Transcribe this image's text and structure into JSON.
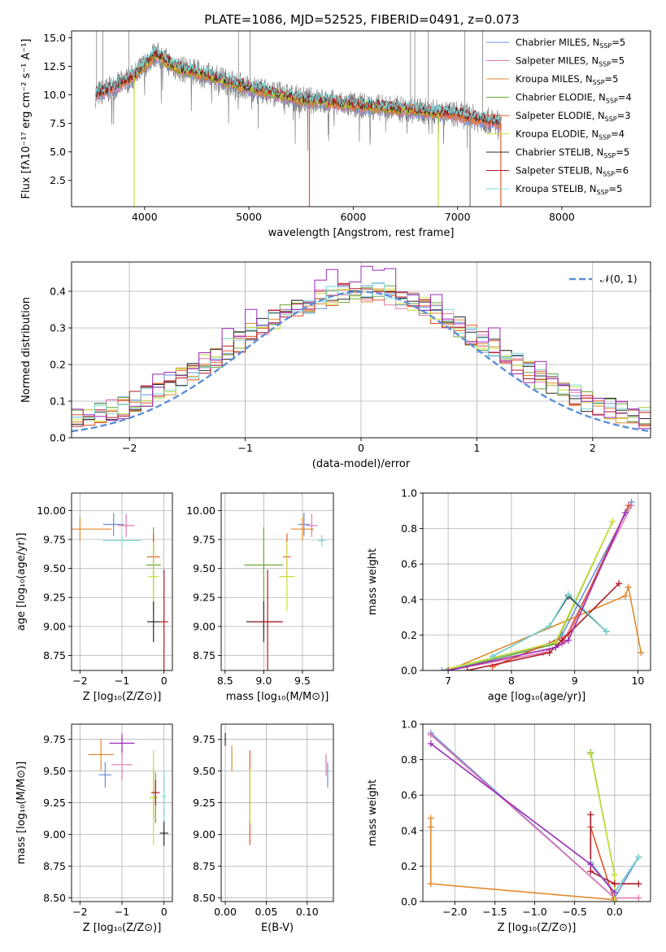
{
  "figure_title": "PLATE=1086, MJD=52525, FIBERID=0491, z=0.073",
  "colors": {
    "Chabrier MILES": "#6a8fd8",
    "Salpeter MILES": "#e07ab0",
    "Kroupa MILES": "#e08a2c",
    "Chabrier ELODIE": "#6aaa3a",
    "Salpeter ELODIE": "#e0582c",
    "Kroupa ELODIE": "#c8e03a",
    "Chabrier STELIB": "#2a2a2a",
    "Salpeter STELIB": "#b01a28",
    "Kroupa STELIB": "#7ad8d8",
    "data": "#808080",
    "extra": "#9a2ab8",
    "normal": "#5b8fd8"
  },
  "chart_data": [
    {
      "id": "spectrum",
      "type": "line",
      "title": "PLATE=1086, MJD=52525, FIBERID=0491, z=0.073",
      "xlabel": "wavelength [Angstrom, rest frame]",
      "ylabel": "Flux [fλ10⁻¹⁷ erg cm⁻² s⁻¹ A⁻¹]",
      "xlim": [
        3300,
        8850
      ],
      "ylim": [
        0.2,
        15.6
      ],
      "xticks": [
        4000,
        5000,
        6000,
        7000,
        8000
      ],
      "yticks": [
        2.5,
        5.0,
        7.5,
        10.0,
        12.5,
        15.0
      ],
      "legend_position": "upper right",
      "legend": [
        {
          "label": "Chabrier MILES, N",
          "sub": "SSP",
          "suffix": "=5"
        },
        {
          "label": "Salpeter MILES, N",
          "sub": "SSP",
          "suffix": "=5"
        },
        {
          "label": "Kroupa MILES, N",
          "sub": "SSP",
          "suffix": "=5"
        },
        {
          "label": "Chabrier ELODIE, N",
          "sub": "SSP",
          "suffix": "=4"
        },
        {
          "label": "Salpeter ELODIE, N",
          "sub": "SSP",
          "suffix": "=3"
        },
        {
          "label": "Kroupa ELODIE, N",
          "sub": "SSP",
          "suffix": "=4"
        },
        {
          "label": "Chabrier STELIB, N",
          "sub": "SSP",
          "suffix": "=5"
        },
        {
          "label": "Salpeter STELIB, N",
          "sub": "SSP",
          "suffix": "=6"
        },
        {
          "label": "Kroupa STELIB, N",
          "sub": "SSP",
          "suffix": "=5"
        }
      ],
      "continuum": {
        "x": [
          3530,
          3700,
          3900,
          4100,
          4300,
          4600,
          5000,
          5500,
          6000,
          6500,
          7000,
          7300,
          7400
        ],
        "y": [
          10.0,
          10.6,
          11.6,
          13.6,
          12.4,
          11.7,
          10.6,
          9.6,
          9.1,
          8.7,
          8.3,
          7.7,
          7.6
        ]
      },
      "model_range": [
        [
          3530,
          7420
        ],
        [
          3530,
          7420
        ],
        [
          3530,
          7420
        ],
        [
          3900,
          6820
        ],
        [
          3900,
          7400
        ],
        [
          3900,
          6820
        ],
        [
          3530,
          7420
        ],
        [
          3530,
          7420
        ],
        [
          3530,
          7420
        ]
      ],
      "spikes": [
        {
          "x": 3900,
          "y": 0.2
        },
        {
          "x": 5580,
          "y": 0.2
        },
        {
          "x": 6815,
          "y": 0.2
        },
        {
          "x": 7120,
          "y": 0.2
        },
        {
          "x": 7415,
          "y": 0.2
        }
      ],
      "data_spikes": [
        {
          "x": 3540,
          "y": 15.6
        },
        {
          "x": 3600,
          "y": 15.6
        },
        {
          "x": 3850,
          "y": 15.6
        },
        {
          "x": 4900,
          "y": 15.6
        },
        {
          "x": 5010,
          "y": 15.6
        },
        {
          "x": 6550,
          "y": 15.6
        },
        {
          "x": 6590,
          "y": 15.6
        },
        {
          "x": 6720,
          "y": 15.6
        },
        {
          "x": 7070,
          "y": 15.6
        },
        {
          "x": 7240,
          "y": 15.6
        }
      ]
    },
    {
      "id": "residuals",
      "type": "line",
      "xlabel": "(data-model)/error",
      "ylabel": "Normed distribution",
      "xlim": [
        -2.5,
        2.5
      ],
      "ylim": [
        0,
        0.48
      ],
      "xticks": [
        -2,
        -1,
        0,
        1,
        2
      ],
      "yticks": [
        0.0,
        0.1,
        0.2,
        0.3,
        0.4
      ],
      "grid": true,
      "legend_position": "upper right",
      "legend": [
        "𝒩(0, 1)"
      ],
      "normal": {
        "mu": 0,
        "sigma": 1
      },
      "bins": [
        -2.5,
        2.5,
        50
      ]
    },
    {
      "id": "age_vs_Z",
      "type": "scatter",
      "xlabel": "Z [log₁₀(Z/Z⊙)]",
      "ylabel": "age  [log₁₀(age/yr)]",
      "xlim": [
        -2.2,
        0.2
      ],
      "ylim": [
        8.62,
        10.15
      ],
      "xticks": [
        -2,
        -1,
        0
      ],
      "yticks": [
        8.75,
        9.0,
        9.25,
        9.5,
        9.75,
        10.0
      ],
      "grid": true,
      "points": [
        {
          "x": -1.2,
          "y": 9.88,
          "xerr": 0.5,
          "yerr": 0.2
        },
        {
          "x": -0.9,
          "y": 9.87,
          "xerr": 0.4,
          "yerr": 0.2
        },
        {
          "x": -2.0,
          "y": 9.84,
          "xerr": 1.5,
          "yerr": 0.2
        },
        {
          "x": -0.25,
          "y": 9.53,
          "xerr": 0.35,
          "yerr": 0.65
        },
        {
          "x": -0.25,
          "y": 9.6,
          "xerr": 0.3,
          "yerr": 0.4
        },
        {
          "x": -0.25,
          "y": 9.43,
          "xerr": 0.25,
          "yerr": 0.6
        },
        {
          "x": -0.25,
          "y": 9.04,
          "xerr": 0.3,
          "yerr": 0.35
        },
        {
          "x": 0.0,
          "y": 9.04,
          "xerr": 0.2,
          "yerr": 0.9
        },
        {
          "x": -1.0,
          "y": 9.74,
          "xerr": 0.9,
          "yerr": 0.1
        }
      ]
    },
    {
      "id": "age_vs_mass",
      "type": "scatter",
      "xlabel": "mass [log₁₀(M/M⊙)]",
      "xlim": [
        8.45,
        9.9
      ],
      "ylim": [
        8.62,
        10.15
      ],
      "xticks": [
        8.5,
        9.0,
        9.5
      ],
      "yticks": [
        8.75,
        9.0,
        9.25,
        9.5,
        9.75,
        10.0
      ],
      "grid": true,
      "points": [
        {
          "x": 9.52,
          "y": 9.88,
          "xerr": 0.15,
          "yerr": 0.2
        },
        {
          "x": 9.62,
          "y": 9.87,
          "xerr": 0.15,
          "yerr": 0.2
        },
        {
          "x": 9.5,
          "y": 9.84,
          "xerr": 0.3,
          "yerr": 0.2
        },
        {
          "x": 9.0,
          "y": 9.53,
          "xerr": 0.5,
          "yerr": 0.65
        },
        {
          "x": 9.3,
          "y": 9.6,
          "xerr": 0.1,
          "yerr": 0.4
        },
        {
          "x": 9.3,
          "y": 9.43,
          "xerr": 0.2,
          "yerr": 0.6
        },
        {
          "x": 9.0,
          "y": 9.04,
          "xerr": 0.45,
          "yerr": 0.35
        },
        {
          "x": 9.05,
          "y": 9.04,
          "xerr": 0.4,
          "yerr": 0.9
        },
        {
          "x": 9.75,
          "y": 9.74,
          "xerr": 0.1,
          "yerr": 0.1
        }
      ]
    },
    {
      "id": "weight_vs_age",
      "type": "line",
      "xlabel": "age  [log₁₀(age/yr)]",
      "ylabel": "mass weight",
      "xlim": [
        6.6,
        10.2
      ],
      "ylim": [
        0,
        1
      ],
      "xticks": [
        7,
        8,
        9,
        10
      ],
      "yticks": [
        0.0,
        0.2,
        0.4,
        0.6,
        0.8,
        1.0
      ],
      "grid": true,
      "series": [
        {
          "x": [
            6.9,
            8.6,
            8.8,
            9.9
          ],
          "y": [
            0.0,
            0.15,
            0.2,
            0.95
          ]
        },
        {
          "x": [
            7.0,
            8.5,
            8.8,
            9.9
          ],
          "y": [
            0.0,
            0.1,
            0.15,
            0.93
          ]
        },
        {
          "x": [
            7.0,
            9.8,
            9.85,
            10.05
          ],
          "y": [
            0.0,
            0.42,
            0.47,
            0.1
          ]
        },
        {
          "x": [
            7.0,
            8.7,
            9.6
          ],
          "y": [
            0.0,
            0.15,
            0.84
          ]
        },
        {
          "x": [
            7.7,
            8.9,
            9.85
          ],
          "y": [
            0.02,
            0.2,
            0.93
          ]
        },
        {
          "x": [
            7.0,
            8.7,
            9.6
          ],
          "y": [
            0.01,
            0.16,
            0.84
          ]
        },
        {
          "x": [
            7.7,
            8.6,
            8.9,
            9.5
          ],
          "y": [
            0.08,
            0.25,
            0.42,
            0.22
          ]
        },
        {
          "x": [
            7.3,
            8.6,
            8.8,
            9.7
          ],
          "y": [
            0.0,
            0.1,
            0.17,
            0.49
          ]
        },
        {
          "x": [
            7.7,
            8.6,
            8.9,
            9.5
          ],
          "y": [
            0.08,
            0.25,
            0.43,
            0.22
          ]
        },
        {
          "x": [
            7.0,
            8.7,
            8.9,
            9.8
          ],
          "y": [
            0.0,
            0.13,
            0.17,
            0.89
          ]
        }
      ]
    },
    {
      "id": "mass_vs_Z",
      "type": "scatter",
      "xlabel": "Z [log₁₀(Z/Z⊙)]",
      "ylabel": "mass [log₁₀(M/M⊙)]",
      "xlim": [
        -2.2,
        0.2
      ],
      "ylim": [
        8.47,
        9.87
      ],
      "xticks": [
        -2,
        -1,
        0
      ],
      "yticks": [
        8.5,
        8.75,
        9.0,
        9.25,
        9.5,
        9.75
      ],
      "grid": true,
      "points": [
        {
          "x": -1.4,
          "y": 9.47,
          "xerr": 0.3,
          "yerr": 0.2
        },
        {
          "x": -1.0,
          "y": 9.55,
          "xerr": 0.5,
          "yerr": 0.25
        },
        {
          "x": -1.5,
          "y": 9.63,
          "xerr": 0.6,
          "yerr": 0.25
        },
        {
          "x": -0.2,
          "y": 9.29,
          "xerr": 0.1,
          "yerr": 0.4
        },
        {
          "x": -0.25,
          "y": 9.33,
          "xerr": 0.05,
          "yerr": 0.4
        },
        {
          "x": -0.25,
          "y": 9.29,
          "xerr": 0.2,
          "yerr": 0.75
        },
        {
          "x": 0.0,
          "y": 9.01,
          "xerr": 0.2,
          "yerr": 0.2
        },
        {
          "x": -0.2,
          "y": 9.33,
          "xerr": 0.2,
          "yerr": 0.2
        },
        {
          "x": 0.0,
          "y": 9.3,
          "xerr": 0.1,
          "yerr": 0.4
        },
        {
          "x": -1.0,
          "y": 9.72,
          "xerr": 0.6,
          "yerr": 0.15
        }
      ]
    },
    {
      "id": "mass_vs_EBV",
      "type": "scatter",
      "xlabel": "E(B-V)",
      "xlim": [
        -0.005,
        0.132
      ],
      "ylim": [
        8.47,
        9.87
      ],
      "xticks": [
        0.0,
        0.05,
        0.1
      ],
      "yticks": [
        8.5,
        8.75,
        9.0,
        9.25,
        9.5,
        9.75
      ],
      "grid": true,
      "points": [
        {
          "x": 0.125,
          "y": 9.47,
          "xerr": 0,
          "yerr": 0.2
        },
        {
          "x": 0.123,
          "y": 9.55,
          "xerr": 0,
          "yerr": 0.17
        },
        {
          "x": 0.008,
          "y": 9.6,
          "xerr": 0,
          "yerr": 0.2
        },
        {
          "x": 0.03,
          "y": 9.29,
          "xerr": 0,
          "yerr": 0.4
        },
        {
          "x": 0.03,
          "y": 9.29,
          "xerr": 0,
          "yerr": 0.75
        },
        {
          "x": 0.03,
          "y": 9.3,
          "xerr": 0,
          "yerr": 0.42
        },
        {
          "x": 0.0,
          "y": 9.75,
          "xerr": 0,
          "yerr": 0.1
        }
      ]
    },
    {
      "id": "weight_vs_Z",
      "type": "line",
      "xlabel": "Z [log₁₀(Z/Z⊙)]",
      "ylabel": "mass weight",
      "xlim": [
        -2.4,
        0.45
      ],
      "ylim": [
        0,
        1
      ],
      "xticks": [
        -2.0,
        -1.5,
        -1.0,
        -0.5,
        0.0
      ],
      "yticks": [
        0.0,
        0.2,
        0.4,
        0.6,
        0.8,
        1.0
      ],
      "grid": true,
      "series": [
        {
          "x": [
            -2.3,
            0.0,
            0.3
          ],
          "y": [
            0.95,
            0.02,
            0.25
          ]
        },
        {
          "x": [
            -2.3,
            0.0,
            0.3
          ],
          "y": [
            0.94,
            0.02,
            0.02
          ]
        },
        {
          "x": [
            -2.3,
            -2.3,
            -2.3,
            0.0
          ],
          "y": [
            0.47,
            0.42,
            0.1,
            0.01
          ]
        },
        {
          "x": [
            -0.3,
            0.0,
            0.0
          ],
          "y": [
            0.84,
            0.15,
            0.0
          ]
        },
        {
          "x": [
            -0.3,
            0.0
          ],
          "y": [
            0.42,
            0.0
          ]
        },
        {
          "x": [
            -0.3,
            0.0,
            0.0
          ],
          "y": [
            0.83,
            0.15,
            0.0
          ]
        },
        {
          "x": [
            -0.3,
            0.0,
            0.3
          ],
          "y": [
            0.22,
            0.05,
            0.25
          ]
        },
        {
          "x": [
            -0.3,
            -0.3,
            0.0,
            0.3
          ],
          "y": [
            0.49,
            0.17,
            0.1,
            0.1
          ]
        },
        {
          "x": [
            -0.3,
            0.0,
            0.3
          ],
          "y": [
            0.22,
            0.05,
            0.25
          ]
        },
        {
          "x": [
            -2.3,
            -0.3,
            0.0
          ],
          "y": [
            0.89,
            0.21,
            0.05
          ]
        }
      ]
    }
  ]
}
